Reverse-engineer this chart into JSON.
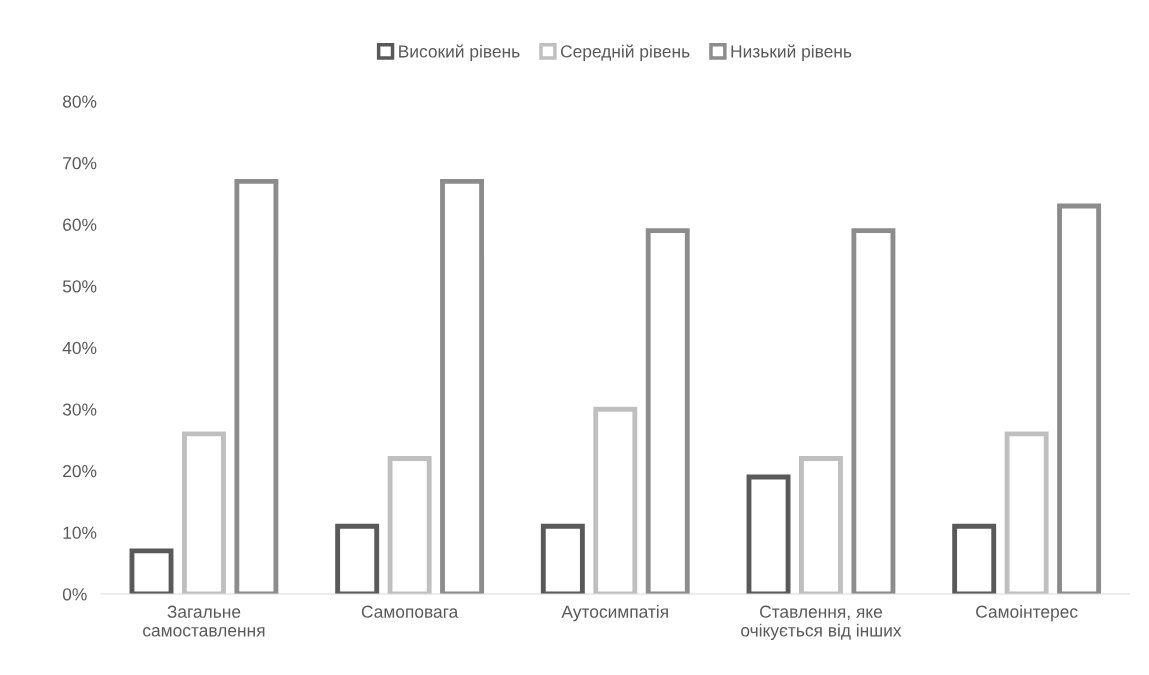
{
  "chart_data": {
    "type": "bar",
    "categories": [
      "Загальне\nсамоставлення",
      "Самоповага",
      "Аутосимпатія",
      "Ставлення, яке\nочікується від інших",
      "Самоінтерес"
    ],
    "series": [
      {
        "name": "Високий рівень",
        "color": "#595959",
        "values": [
          7,
          11,
          11,
          19,
          11
        ]
      },
      {
        "name": "Середній рівень",
        "color": "#bfbfbf",
        "values": [
          26,
          22,
          30,
          22,
          26
        ]
      },
      {
        "name": "Низький рівень",
        "color": "#8c8c8c",
        "values": [
          67,
          67,
          59,
          59,
          63
        ]
      }
    ],
    "ylim": [
      0,
      80
    ],
    "yticks": [
      {
        "value": 0,
        "label": "0%"
      },
      {
        "value": 10,
        "label": "10%"
      },
      {
        "value": 20,
        "label": "20%"
      },
      {
        "value": 30,
        "label": "30%"
      },
      {
        "value": 40,
        "label": "40%"
      },
      {
        "value": 50,
        "label": "50%"
      },
      {
        "value": 60,
        "label": "60%"
      },
      {
        "value": 70,
        "label": "70%"
      },
      {
        "value": 80,
        "label": "80%"
      }
    ],
    "grid": false,
    "legend": "top"
  }
}
